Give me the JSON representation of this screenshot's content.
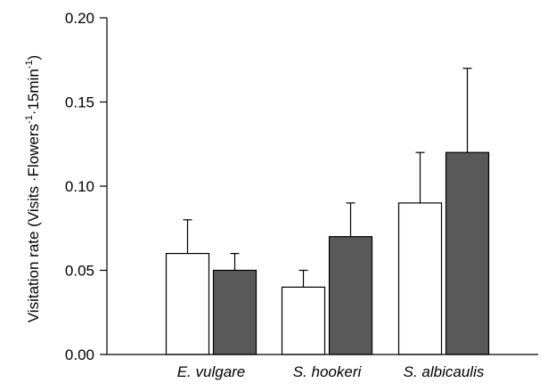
{
  "chart_data": {
    "type": "bar",
    "title": "",
    "xlabel": "",
    "ylabel": {
      "text": "Visitation rate (Visits ·Flowers",
      "sup1": "-1",
      "mid": "·15min",
      "sup2": "-1",
      "end": ")"
    },
    "categories": [
      "E. vulgare",
      "S. hookeri",
      "S. albicaulis"
    ],
    "ylim": [
      0,
      0.2
    ],
    "yticks": [
      "0.00",
      "0.05",
      "0.10",
      "0.15",
      "0.20"
    ],
    "grid": false,
    "legend": "none",
    "series": [
      {
        "color": "#ffffff",
        "values": [
          0.06,
          0.04,
          0.09
        ],
        "errors": [
          0.02,
          0.01,
          0.03
        ]
      },
      {
        "color": "#595959",
        "values": [
          0.05,
          0.07,
          0.12
        ],
        "errors": [
          0.01,
          0.02,
          0.05
        ]
      }
    ]
  }
}
